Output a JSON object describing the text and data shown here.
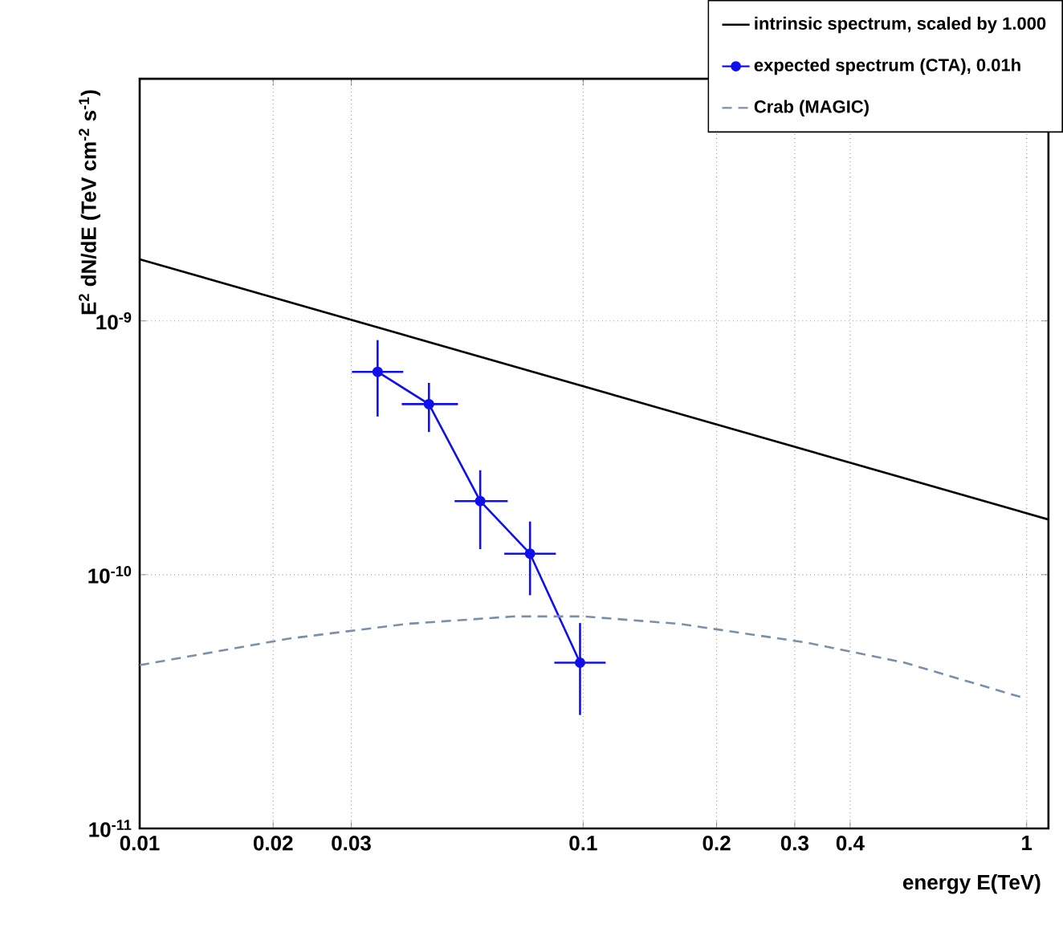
{
  "chart_data": {
    "type": "line",
    "xlabel": "energy E(TeV)",
    "ylabel": "E$^{2}$ dN/dE (TeV cm$^{-2}$ s$^{-1}$)",
    "log": "xy",
    "grid": true,
    "legend": "top right",
    "xlim": [
      0.01,
      1.12
    ],
    "ylim": [
      1e-11,
      9e-09
    ],
    "xticks": [
      0.01,
      0.02,
      0.03,
      0.1,
      0.2,
      0.3,
      0.4,
      1
    ],
    "yticks": [
      {
        "value": 1e-11,
        "label": "10$^{-11}$"
      },
      {
        "value": 1e-10,
        "label": "10$^{-10}$"
      },
      {
        "value": 1e-09,
        "label": "10$^{-9}$"
      }
    ],
    "series": [
      {
        "name": "intrinsic spectrum, scaled by 1.000",
        "color": "#000000",
        "marker": "none",
        "line_style": "solid",
        "x": [
          0.01,
          1.12
        ],
        "values": [
          1.75e-09,
          1.65e-10
        ]
      },
      {
        "name": "expected spectrum (CTA), 0.01h",
        "color": "#1010ee",
        "marker": "circle",
        "line_style": "solid",
        "x": [
          0.0344,
          0.0449,
          0.0586,
          0.0759,
          0.0984
        ],
        "values": [
          6.3e-10,
          4.7e-10,
          1.95e-10,
          1.21e-10,
          4.5e-11
        ],
        "errors": [
          [
            4.2e-10,
            8.4e-10
          ],
          [
            3.65e-10,
            5.7e-10
          ],
          [
            1.26e-10,
            2.58e-10
          ],
          [
            8.3e-11,
            1.62e-10
          ],
          [
            2.8e-11,
            6.45e-11
          ]
        ],
        "xerrors": [
          [
            0.0301,
            0.0393
          ],
          [
            0.039,
            0.0522
          ],
          [
            0.0513,
            0.0676
          ],
          [
            0.0664,
            0.0868
          ],
          [
            0.0861,
            0.1124
          ]
        ]
      },
      {
        "name": "Crab (MAGIC)",
        "color": "#7a90a8",
        "marker": "none",
        "line_style": "dashed",
        "x": [
          0.01,
          0.0217,
          0.04,
          0.07,
          0.1,
          0.165,
          0.319,
          0.531,
          0.99
        ],
        "values": [
          4.4e-11,
          5.6e-11,
          6.4e-11,
          6.85e-11,
          6.85e-11,
          6.4e-11,
          5.4e-11,
          4.5e-11,
          3.26e-11
        ]
      }
    ]
  }
}
